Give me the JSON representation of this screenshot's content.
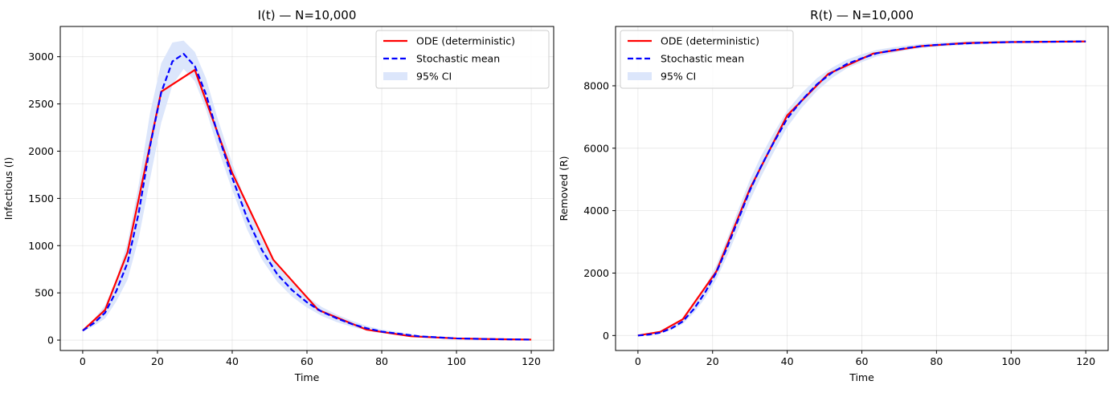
{
  "chart_data": [
    {
      "type": "line",
      "title": "I(t) — N=10,000",
      "xlabel": "Time",
      "ylabel": "Infectious (I)",
      "xlim": [
        -6,
        126
      ],
      "ylim": [
        -110,
        3320
      ],
      "xticks": [
        0,
        20,
        40,
        60,
        80,
        100,
        120
      ],
      "yticks": [
        0,
        500,
        1000,
        1500,
        2000,
        2500,
        3000
      ],
      "grid": true,
      "legend": {
        "position": "top-right",
        "entries": [
          "ODE (deterministic)",
          "Stochastic mean",
          "95% CI"
        ]
      },
      "series": [
        {
          "name": "ODE (deterministic)",
          "style": "solid",
          "color": "#ff0000",
          "x": [
            0,
            6,
            12,
            21,
            30,
            40,
            51,
            63,
            76,
            88,
            100,
            110,
            120
          ],
          "y": [
            100,
            320,
            930,
            2630,
            2860,
            1770,
            850,
            320,
            110,
            40,
            18,
            10,
            5
          ]
        },
        {
          "name": "Stochastic mean",
          "style": "dashed",
          "color": "#0000ff",
          "x": [
            0,
            3,
            6,
            9,
            12,
            15,
            18,
            21,
            24,
            27,
            30,
            33,
            36,
            40,
            44,
            48,
            52,
            56,
            60,
            64,
            68,
            72,
            76,
            80,
            90,
            100,
            110,
            120
          ],
          "y": [
            100,
            180,
            290,
            520,
            820,
            1350,
            2050,
            2620,
            2950,
            3030,
            2900,
            2600,
            2200,
            1720,
            1290,
            950,
            700,
            530,
            400,
            300,
            230,
            170,
            125,
            90,
            40,
            18,
            10,
            5
          ]
        },
        {
          "name": "95% CI",
          "type": "band",
          "color": "#dce6fb",
          "x": [
            0,
            3,
            6,
            9,
            12,
            15,
            18,
            21,
            24,
            27,
            30,
            33,
            36,
            40,
            44,
            48,
            52,
            56,
            60,
            64,
            68,
            72,
            76,
            80,
            90,
            100,
            110,
            120
          ],
          "lower": [
            90,
            150,
            230,
            410,
            640,
            1080,
            1700,
            2300,
            2700,
            2870,
            2740,
            2440,
            2050,
            1590,
            1170,
            850,
            620,
            460,
            345,
            255,
            190,
            140,
            100,
            72,
            30,
            12,
            6,
            2
          ],
          "upper": [
            115,
            220,
            370,
            650,
            1030,
            1650,
            2400,
            2930,
            3150,
            3170,
            3050,
            2770,
            2360,
            1870,
            1420,
            1060,
            790,
            610,
            460,
            350,
            270,
            205,
            150,
            112,
            52,
            25,
            14,
            8
          ]
        }
      ]
    },
    {
      "type": "line",
      "title": "R(t) — N=10,000",
      "xlabel": "Time",
      "ylabel": "Removed (R)",
      "xlim": [
        -6,
        126
      ],
      "ylim": [
        -480,
        9900
      ],
      "xticks": [
        0,
        20,
        40,
        60,
        80,
        100,
        120
      ],
      "yticks": [
        0,
        2000,
        4000,
        6000,
        8000
      ],
      "grid": true,
      "legend": {
        "position": "top-left",
        "entries": [
          "ODE (deterministic)",
          "Stochastic mean",
          "95% CI"
        ]
      },
      "series": [
        {
          "name": "ODE (deterministic)",
          "style": "solid",
          "color": "#ff0000",
          "x": [
            0,
            6,
            12,
            21,
            30,
            40,
            51,
            63,
            76,
            88,
            100,
            110,
            120
          ],
          "y": [
            0,
            120,
            520,
            2050,
            4700,
            7050,
            8380,
            9030,
            9270,
            9370,
            9400,
            9410,
            9420
          ]
        },
        {
          "name": "Stochastic mean",
          "style": "dashed",
          "color": "#0000ff",
          "x": [
            0,
            3,
            6,
            9,
            12,
            15,
            18,
            21,
            24,
            27,
            30,
            33,
            36,
            40,
            44,
            48,
            52,
            56,
            60,
            64,
            68,
            72,
            76,
            80,
            90,
            100,
            110,
            120
          ],
          "y": [
            0,
            30,
            90,
            230,
            450,
            850,
            1380,
            2020,
            2850,
            3750,
            4650,
            5420,
            6100,
            6950,
            7550,
            8050,
            8420,
            8700,
            8880,
            9040,
            9130,
            9210,
            9270,
            9310,
            9370,
            9400,
            9410,
            9420
          ]
        },
        {
          "name": "95% CI",
          "type": "band",
          "color": "#dce6fb",
          "x": [
            0,
            3,
            6,
            9,
            12,
            15,
            18,
            21,
            24,
            27,
            30,
            33,
            36,
            40,
            44,
            48,
            52,
            56,
            60,
            64,
            68,
            72,
            76,
            80,
            90,
            100,
            110,
            120
          ],
          "lower": [
            0,
            20,
            70,
            180,
            370,
            720,
            1200,
            1800,
            2570,
            3430,
            4320,
            5090,
            5790,
            6680,
            7310,
            7840,
            8250,
            8560,
            8760,
            8940,
            9050,
            9140,
            9210,
            9250,
            9320,
            9360,
            9370,
            9380
          ],
          "upper": [
            0,
            45,
            120,
            290,
            540,
            990,
            1560,
            2250,
            3130,
            4070,
            4990,
            5750,
            6410,
            7210,
            7780,
            8250,
            8580,
            8840,
            9010,
            9150,
            9230,
            9290,
            9340,
            9380,
            9430,
            9450,
            9460,
            9470
          ]
        }
      ]
    }
  ]
}
